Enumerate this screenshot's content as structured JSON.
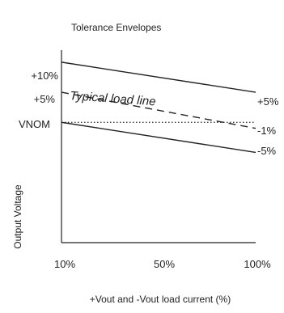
{
  "chart_data": {
    "type": "line",
    "title": "Tolerance Envelopes",
    "xlabel": "+Vout and -Vout load current (%)",
    "ylabel": "Output Voltage",
    "x_ticks": [
      "10%",
      "50%",
      "100%"
    ],
    "y_ticks": [
      "+10%",
      "+5%",
      "VNOM"
    ],
    "x": [
      10,
      100
    ],
    "xlim": [
      10,
      100
    ],
    "ylim": [
      -20,
      12
    ],
    "series": [
      {
        "key": "upper",
        "values": [
          10,
          5
        ],
        "style": "solid",
        "end_label": "+5%"
      },
      {
        "key": "typical",
        "values": [
          5,
          -1
        ],
        "style": "dashed",
        "end_label": "-1%"
      },
      {
        "key": "lower",
        "values": [
          0,
          -5
        ],
        "style": "solid",
        "end_label": "-5%"
      },
      {
        "key": "vnom",
        "values": [
          0,
          0
        ],
        "style": "dotted",
        "end_label": ""
      }
    ],
    "annotation": {
      "text": "Typical load line",
      "attach_series": "typical",
      "at_x": 16
    },
    "grid": false,
    "legend": "none",
    "colors": {
      "line": "#222222",
      "text": "#222222",
      "background": "#ffffff"
    }
  }
}
